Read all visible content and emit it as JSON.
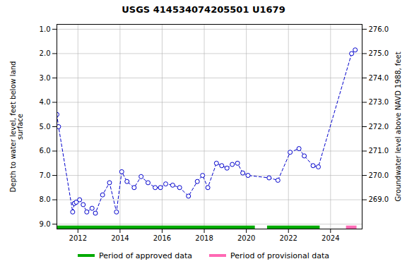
{
  "chart_data": {
    "type": "line",
    "title": "USGS 414534074205501 U1679",
    "ylabel": "Depth to water level, feet below land\nsurface",
    "y2label": "Groundwater level above NAVD 1988, feet",
    "x": [
      2011.0,
      2011.08,
      2011.75,
      2011.83,
      2011.92,
      2012.08,
      2012.25,
      2012.42,
      2012.67,
      2012.83,
      2013.17,
      2013.5,
      2013.83,
      2014.08,
      2014.33,
      2014.67,
      2015.0,
      2015.33,
      2015.67,
      2015.92,
      2016.17,
      2016.5,
      2016.83,
      2017.25,
      2017.67,
      2017.92,
      2018.17,
      2018.58,
      2018.83,
      2019.08,
      2019.33,
      2019.58,
      2019.83,
      2020.08,
      2021.08,
      2021.5,
      2022.08,
      2022.5,
      2022.75,
      2023.17,
      2023.42,
      2025.0,
      2025.17
    ],
    "values": [
      4.5,
      5.0,
      8.5,
      8.15,
      8.1,
      8.0,
      8.2,
      8.5,
      8.35,
      8.55,
      7.8,
      7.3,
      8.5,
      6.85,
      7.25,
      7.5,
      7.05,
      7.3,
      7.5,
      7.5,
      7.35,
      7.4,
      7.5,
      7.85,
      7.25,
      7.0,
      7.5,
      6.5,
      6.6,
      6.7,
      6.55,
      6.5,
      6.9,
      7.0,
      7.1,
      7.2,
      6.05,
      5.9,
      6.2,
      6.6,
      6.65,
      2.0,
      1.85
    ],
    "color": "#0000CC",
    "marker": "o",
    "line_style": "dashed",
    "xlim": [
      2011.0,
      2025.5
    ],
    "xticks": [
      2012,
      2014,
      2016,
      2018,
      2020,
      2022,
      2024
    ],
    "ylim": [
      9.2,
      0.8
    ],
    "yticks": [
      {
        "value": 1.0,
        "label": "1.0"
      },
      {
        "value": 2.0,
        "label": "2.0"
      },
      {
        "value": 3.0,
        "label": "3.0"
      },
      {
        "value": 4.0,
        "label": "4.0"
      },
      {
        "value": 5.0,
        "label": "5.0"
      },
      {
        "value": 6.0,
        "label": "6.0"
      },
      {
        "value": 7.0,
        "label": "7.0"
      },
      {
        "value": 8.0,
        "label": "8.0"
      },
      {
        "value": 9.0,
        "label": "9.0"
      }
    ],
    "y2lim": [
      267.8,
      276.2
    ],
    "y2ticks": [
      {
        "value": 269.0,
        "label": "269.0"
      },
      {
        "value": 270.0,
        "label": "270.0"
      },
      {
        "value": 271.0,
        "label": "271.0"
      },
      {
        "value": 272.0,
        "label": "272.0"
      },
      {
        "value": 273.0,
        "label": "273.0"
      },
      {
        "value": 274.0,
        "label": "274.0"
      },
      {
        "value": 275.0,
        "label": "275.0"
      },
      {
        "value": 276.0,
        "label": "276.0"
      }
    ],
    "periods": [
      {
        "name": "Period of approved data",
        "color": "#00AA00",
        "ranges": [
          [
            2011.0,
            2020.42
          ],
          [
            2021.0,
            2023.5
          ]
        ]
      },
      {
        "name": "Period of provisional data",
        "color": "#FF69B4",
        "ranges": [
          [
            2024.75,
            2025.25
          ]
        ]
      }
    ],
    "grid": true,
    "legend": "bottom"
  }
}
